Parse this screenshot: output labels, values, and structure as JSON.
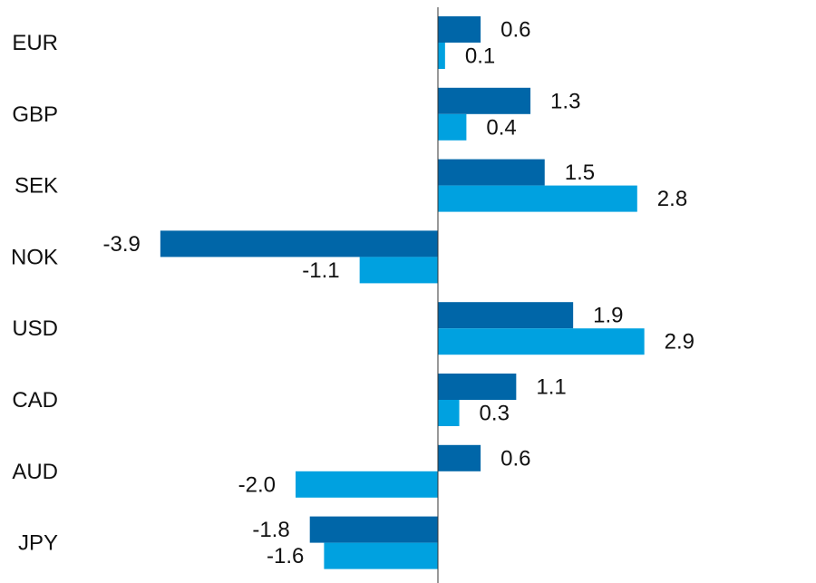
{
  "chart_data": {
    "type": "bar",
    "orientation": "horizontal",
    "categories": [
      "EUR",
      "GBP",
      "SEK",
      "NOK",
      "USD",
      "CAD",
      "AUD",
      "JPY"
    ],
    "series": [
      {
        "color": "#0066a8",
        "values": [
          0.6,
          1.3,
          1.5,
          -3.9,
          1.9,
          1.1,
          0.6,
          -1.8
        ],
        "labels": [
          "0.6",
          "1.3",
          "1.5",
          "-3.9",
          "1.9",
          "1.1",
          "0.6",
          "-1.8"
        ]
      },
      {
        "color": "#00a1e0",
        "values": [
          0.1,
          0.4,
          2.8,
          -1.1,
          2.9,
          0.3,
          -2.0,
          -1.6
        ],
        "labels": [
          "0.1",
          "0.4",
          "2.8",
          "-1.1",
          "2.9",
          "0.3",
          "-2.0",
          "-1.6"
        ]
      }
    ],
    "xlim": [
      -4.0,
      3.0
    ],
    "grid": false,
    "legend": "none"
  }
}
